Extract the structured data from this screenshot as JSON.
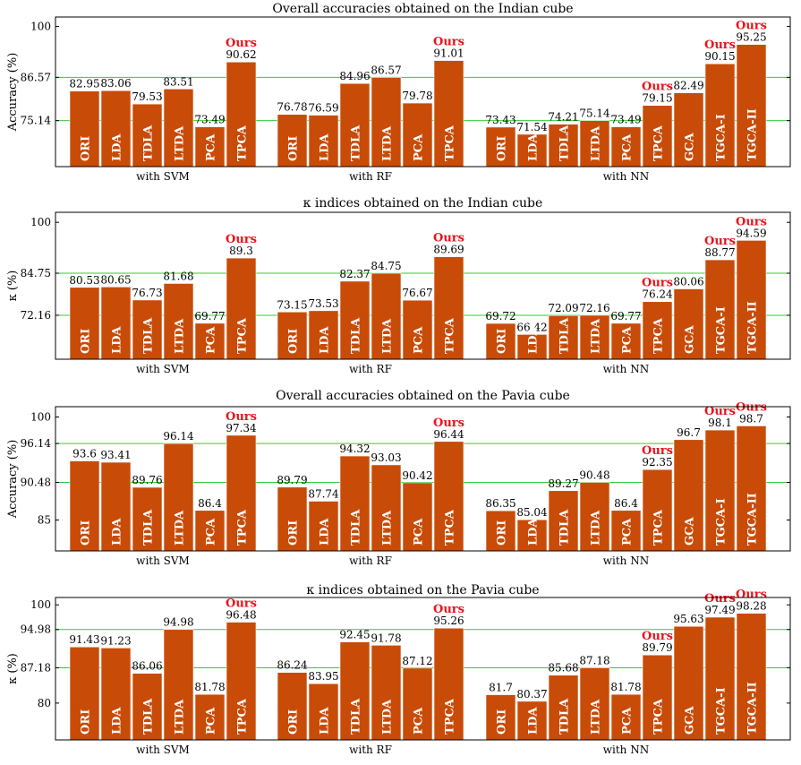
{
  "colors": {
    "bar": "#c84b08",
    "bar_stroke": "#ffffff",
    "grid": "#33cc33",
    "frame": "#000000",
    "ours": "#e8141c"
  },
  "ours_label": "Ours",
  "chart_data": [
    {
      "type": "bar",
      "title": "Overall accuracies obtained on the Indian cube",
      "ylabel": "Accuracy (%)",
      "yticks": [
        75.14,
        86.57,
        100
      ],
      "ylim": [
        63,
        102.5
      ],
      "grid": [
        75.14,
        86.57
      ],
      "groups": [
        {
          "label": "with SVM",
          "bars": [
            {
              "name": "ORI",
              "value": 82.95
            },
            {
              "name": "LDA",
              "value": 83.06
            },
            {
              "name": "TDLA",
              "value": 79.53
            },
            {
              "name": "LTDA",
              "value": 83.51
            },
            {
              "name": "PCA",
              "value": 73.49
            },
            {
              "name": "TPCA",
              "value": 90.62,
              "ours": true
            }
          ]
        },
        {
          "label": "with RF",
          "bars": [
            {
              "name": "ORI",
              "value": 76.78
            },
            {
              "name": "LDA",
              "value": 76.59
            },
            {
              "name": "TDLA",
              "value": 84.96
            },
            {
              "name": "LTDA",
              "value": 86.57
            },
            {
              "name": "PCA",
              "value": 79.78
            },
            {
              "name": "TPCA",
              "value": 91.01,
              "ours": true
            }
          ]
        },
        {
          "label": "with NN",
          "bars": [
            {
              "name": "ORI",
              "value": 73.43
            },
            {
              "name": "LDA",
              "value": 71.54
            },
            {
              "name": "TDLA",
              "value": 74.21
            },
            {
              "name": "LTDA",
              "value": 75.14
            },
            {
              "name": "PCA",
              "value": 73.49
            },
            {
              "name": "TPCA",
              "value": 79.15,
              "ours": true
            },
            {
              "name": "GCA",
              "value": 82.49
            },
            {
              "name": "TGCA-I",
              "value": 90.15,
              "ours": true
            },
            {
              "name": "TGCA-II",
              "value": 95.25,
              "ours": true
            }
          ]
        }
      ]
    },
    {
      "type": "bar",
      "title": "κ indices obtained on the Indian cube",
      "ylabel": "κ (%)",
      "yticks": [
        72.16,
        84.75,
        100
      ],
      "ylim": [
        59,
        103
      ],
      "grid": [
        72.16,
        84.75
      ],
      "groups": [
        {
          "label": "with SVM",
          "bars": [
            {
              "name": "ORI",
              "value": 80.53
            },
            {
              "name": "LDA",
              "value": 80.65
            },
            {
              "name": "TDLA",
              "value": 76.73
            },
            {
              "name": "LTDA",
              "value": 81.68
            },
            {
              "name": "PCA",
              "value": 69.77
            },
            {
              "name": "TPCA",
              "value": 89.3,
              "ours": true
            }
          ]
        },
        {
          "label": "with RF",
          "bars": [
            {
              "name": "ORI",
              "value": 73.15
            },
            {
              "name": "LDA",
              "value": 73.53
            },
            {
              "name": "TDLA",
              "value": 82.37
            },
            {
              "name": "LTDA",
              "value": 84.75
            },
            {
              "name": "PCA",
              "value": 76.67
            },
            {
              "name": "TPCA",
              "value": 89.69,
              "ours": true
            }
          ]
        },
        {
          "label": "with NN",
          "bars": [
            {
              "name": "ORI",
              "value": 69.72
            },
            {
              "name": "LDA",
              "value": 66.42
            },
            {
              "name": "TDLA",
              "value": 72.09
            },
            {
              "name": "LTDA",
              "value": 72.16
            },
            {
              "name": "PCA",
              "value": 69.77
            },
            {
              "name": "TPCA",
              "value": 76.24,
              "ours": true
            },
            {
              "name": "GCA",
              "value": 80.06
            },
            {
              "name": "TGCA-I",
              "value": 88.77,
              "ours": true
            },
            {
              "name": "TGCA-II",
              "value": 94.59,
              "ours": true
            }
          ]
        }
      ]
    },
    {
      "type": "bar",
      "title": "Overall accuracies obtained on the Pavia cube",
      "ylabel": "Accuracy (%)",
      "yticks": [
        85,
        90.48,
        96.14,
        100
      ],
      "ylim": [
        80.5,
        101.5
      ],
      "grid": [
        90.48,
        96.14
      ],
      "groups": [
        {
          "label": "with SVM",
          "bars": [
            {
              "name": "ORI",
              "value": 93.6
            },
            {
              "name": "LDA",
              "value": 93.41
            },
            {
              "name": "TDLA",
              "value": 89.76
            },
            {
              "name": "LTDA",
              "value": 96.14
            },
            {
              "name": "PCA",
              "value": 86.4
            },
            {
              "name": "TPCA",
              "value": 97.34,
              "ours": true
            }
          ]
        },
        {
          "label": "with RF",
          "bars": [
            {
              "name": "ORI",
              "value": 89.79
            },
            {
              "name": "LDA",
              "value": 87.74
            },
            {
              "name": "TDLA",
              "value": 94.32
            },
            {
              "name": "LTDA",
              "value": 93.03
            },
            {
              "name": "PCA",
              "value": 90.42
            },
            {
              "name": "TPCA",
              "value": 96.44,
              "ours": true
            }
          ]
        },
        {
          "label": "with NN",
          "bars": [
            {
              "name": "ORI",
              "value": 86.35
            },
            {
              "name": "LDA",
              "value": 85.04
            },
            {
              "name": "TDLA",
              "value": 89.27
            },
            {
              "name": "LTDA",
              "value": 90.48
            },
            {
              "name": "PCA",
              "value": 86.4
            },
            {
              "name": "TPCA",
              "value": 92.35,
              "ours": true
            },
            {
              "name": "GCA",
              "value": 96.7
            },
            {
              "name": "TGCA-I",
              "value": 98.1,
              "ours": true
            },
            {
              "name": "TGCA-II",
              "value": 98.7,
              "ours": true
            }
          ]
        }
      ]
    },
    {
      "type": "bar",
      "title": "κ indices obtained on the Pavia cube",
      "ylabel": "κ (%)",
      "yticks": [
        80,
        87.18,
        94.98,
        100
      ],
      "ylim": [
        72.5,
        101.5
      ],
      "grid": [
        87.18,
        94.98
      ],
      "groups": [
        {
          "label": "with SVM",
          "bars": [
            {
              "name": "ORI",
              "value": 91.43
            },
            {
              "name": "LDA",
              "value": 91.23
            },
            {
              "name": "TDLA",
              "value": 86.06
            },
            {
              "name": "LTDA",
              "value": 94.98
            },
            {
              "name": "PCA",
              "value": 81.78
            },
            {
              "name": "TPCA",
              "value": 96.48,
              "ours": true
            }
          ]
        },
        {
          "label": "with RF",
          "bars": [
            {
              "name": "ORI",
              "value": 86.24
            },
            {
              "name": "LDA",
              "value": 83.95
            },
            {
              "name": "TDLA",
              "value": 92.45
            },
            {
              "name": "LTDA",
              "value": 91.78
            },
            {
              "name": "PCA",
              "value": 87.12
            },
            {
              "name": "TPCA",
              "value": 95.26,
              "ours": true
            }
          ]
        },
        {
          "label": "with NN",
          "bars": [
            {
              "name": "ORI",
              "value": 81.7
            },
            {
              "name": "LDA",
              "value": 80.37
            },
            {
              "name": "TDLA",
              "value": 85.68
            },
            {
              "name": "LTDA",
              "value": 87.18
            },
            {
              "name": "PCA",
              "value": 81.78
            },
            {
              "name": "TPCA",
              "value": 89.79,
              "ours": true
            },
            {
              "name": "GCA",
              "value": 95.63
            },
            {
              "name": "TGCA-I",
              "value": 97.49,
              "ours": true
            },
            {
              "name": "TGCA-II",
              "value": 98.28,
              "ours": true
            }
          ]
        }
      ]
    }
  ]
}
